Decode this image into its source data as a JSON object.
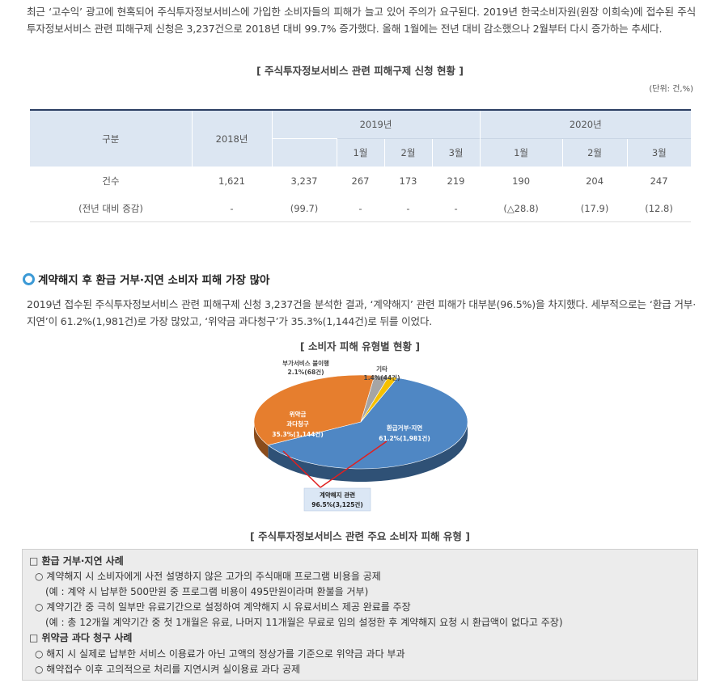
{
  "intro": "최근 ‘고수익’ 광고에 현혹되어 주식투자정보서비스에 가입한 소비자들의 피해가 늘고 있어 주의가 요구된다. 2019년 한국소비자원(원장 이희숙)에 접수된 주식투자정보서비스 관련 피해구제 신청은 3,237건으로 2018년 대비 99.7% 증가했다. 올해 1월에는 전년 대비 감소했으나 2월부터 다시 증가하는 추세다.",
  "table_caption": "[ 주식투자정보서비스 관련 피해구제 신청 현황 ]",
  "unit": "(단위: 건,%)",
  "table": {
    "head": {
      "category": "구분",
      "y2018": "2018년",
      "y2019": "2019년",
      "y2020": "2020년",
      "months": [
        "1월",
        "2월",
        "3월",
        "1월",
        "2월",
        "3월"
      ]
    },
    "rows": [
      {
        "label": "건수",
        "cells": [
          "1,621",
          "3,237",
          "267",
          "173",
          "219",
          "190",
          "204",
          "247"
        ]
      },
      {
        "label": "(전년 대비 증감)",
        "cells": [
          "-",
          "(99.7)",
          "-",
          "-",
          "-",
          "(△28.8)",
          "(17.9)",
          "(12.8)"
        ]
      }
    ]
  },
  "section_heading": "계약해지 후 환급 거부·지연 소비자 피해 가장 많아",
  "section_para": "2019년 접수된 주식투자정보서비스 관련 피해구제 신청 3,237건을 분석한 결과, ‘계약해지’ 관련 피해가 대부분(96.5%)을 차지했다. 세부적으로는 ‘환급 거부·지연’이 61.2%(1,981건)로 가장 많았고, ‘위약금 과다청구’가 35.3%(1,144건)로 뒤를 이었다.",
  "chart_caption": "[ 소비자 피해 유형별 현황 ]",
  "chart_data": {
    "type": "pie",
    "title": "[ 소비자 피해 유형별 현황 ]",
    "slices": [
      {
        "name": "환급거부·지연",
        "percent": 61.2,
        "count_label": "61.2%(1,981건)",
        "color": "#4f87c4"
      },
      {
        "name": "위약금 과다청구",
        "name_line1": "위약금",
        "name_line2": "과다청구",
        "percent": 35.3,
        "count_label": "35.3%(1,144건)",
        "color": "#e67e2e"
      },
      {
        "name": "부가서비스 불이행",
        "percent": 2.1,
        "count_label": "2.1%(68건)",
        "color": "#a5a5a5"
      },
      {
        "name": "기타",
        "percent": 1.4,
        "count_label": "1.4%(44건)",
        "color": "#f5c000"
      }
    ],
    "callout": {
      "name": "계약해지 관련",
      "count_label": "96.5%(3,125건)"
    }
  },
  "cases_caption": "[ 주식투자정보서비스 관련 주요 소비자 피해 유형 ]",
  "cases": {
    "refund_title": "□ 환급 거부·지연 사례",
    "refund_item1": "○ 계약해지 시 소비자에게 사전 설명하지 않은 고가의 주식매매 프로그램 비용을 공제",
    "refund_ex1": "(예 : 계약 시 납부한 500만원 중 프로그램 비용이 495만원이라며 환불을 거부)",
    "refund_item2": "○ 계약기간 중 극히 일부만 유료기간으로 설정하여 계약해지 시 유료서비스 제공 완료를 주장",
    "refund_ex2": "(예 : 총 12개월 계약기간 중 첫 1개월은 유료, 나머지 11개월은 무료로 임의 설정한 후 계약해지 요청 시 환급액이 없다고 주장)",
    "penalty_title": "□ 위약금 과다 청구 사례",
    "penalty_item1": "○ 해지 시 실제로 납부한 서비스 이용료가 아닌 고액의 정상가를 기준으로 위약금 과다 부과",
    "penalty_item2": "○ 해약접수 이후 고의적으로 처리를 지연시켜 실이용료 과다 공제"
  }
}
